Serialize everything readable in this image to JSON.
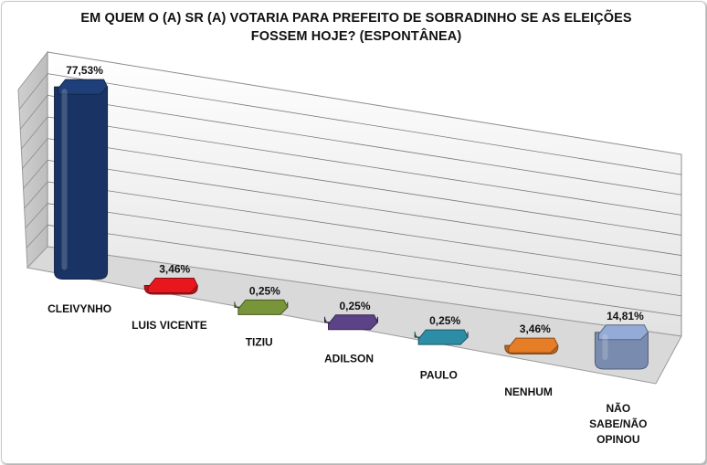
{
  "chart_data": {
    "type": "bar",
    "title": "EM QUEM O (A) SR (A) VOTARIA PARA PREFEITO DE SOBRADINHO SE AS ELEIÇÕES FOSSEM HOJE? (ESPONTÂNEA)",
    "categories": [
      "CLEIVYNHO",
      "LUIS VICENTE",
      "TIZIU",
      "ADILSON",
      "PAULO",
      "NENHUM",
      "NÃO SABE/NÃO OPINOU"
    ],
    "category_lines": [
      [
        "CLEIVYNHO"
      ],
      [
        "LUIS VICENTE"
      ],
      [
        "TIZIU"
      ],
      [
        "ADILSON"
      ],
      [
        "PAULO"
      ],
      [
        "NENHUM"
      ],
      [
        "NÃO",
        "SABE/NÃO",
        "OPINOU"
      ]
    ],
    "values": [
      77.53,
      3.46,
      0.25,
      0.25,
      0.25,
      3.46,
      14.81
    ],
    "data_labels": [
      "77,53%",
      "3,46%",
      "0,25%",
      "0,25%",
      "0,25%",
      "3,46%",
      "14,81%"
    ],
    "colors": [
      "#1f3f7a",
      "#e8161d",
      "#78953a",
      "#5c4286",
      "#2e8da6",
      "#e67e28",
      "#93abd6"
    ],
    "ylim": [
      0,
      90
    ],
    "grid": true,
    "legend": "none"
  }
}
